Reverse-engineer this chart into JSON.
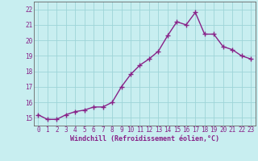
{
  "x": [
    0,
    1,
    2,
    3,
    4,
    5,
    6,
    7,
    8,
    9,
    10,
    11,
    12,
    13,
    14,
    15,
    16,
    17,
    18,
    19,
    20,
    21,
    22,
    23
  ],
  "y": [
    15.2,
    14.9,
    14.9,
    15.2,
    15.4,
    15.5,
    15.7,
    15.7,
    16.0,
    17.0,
    17.8,
    18.4,
    18.8,
    19.3,
    20.3,
    21.2,
    21.0,
    21.8,
    20.4,
    20.4,
    19.6,
    19.4,
    19.0,
    18.8
  ],
  "line_color": "#882288",
  "marker": "+",
  "markersize": 4,
  "linewidth": 1.0,
  "bg_color": "#c8eef0",
  "grid_color": "#9dd4d8",
  "xlabel": "Windchill (Refroidissement éolien,°C)",
  "xlim": [
    -0.5,
    23.5
  ],
  "ylim": [
    14.5,
    22.5
  ],
  "xtick_labels": [
    "0",
    "1",
    "2",
    "3",
    "4",
    "5",
    "6",
    "7",
    "8",
    "9",
    "10",
    "11",
    "12",
    "13",
    "14",
    "15",
    "16",
    "17",
    "18",
    "19",
    "20",
    "21",
    "22",
    "23"
  ],
  "yticks": [
    15,
    16,
    17,
    18,
    19,
    20,
    21,
    22
  ],
  "tick_color": "#882288",
  "tick_fontsize": 5.5,
  "xlabel_fontsize": 6.0,
  "axis_color": "#882288",
  "spine_color": "#666666"
}
